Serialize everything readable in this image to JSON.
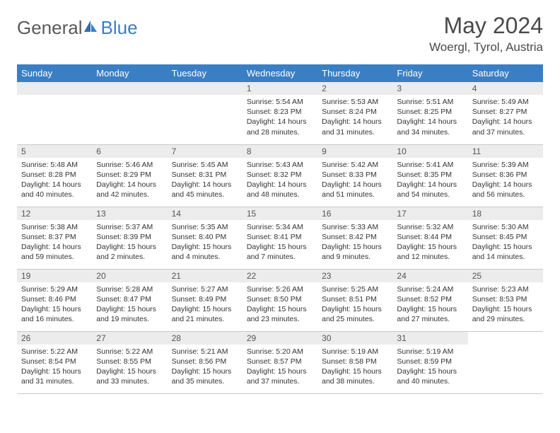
{
  "logo": {
    "text_general": "General",
    "text_blue": "Blue"
  },
  "title": {
    "month_year": "May 2024",
    "location": "Woergl, Tyrol, Austria"
  },
  "colors": {
    "header_bg": "#3a7fc4",
    "header_fg": "#ffffff",
    "daynum_bg": "#ececec",
    "text": "#333333",
    "logo_gray": "#5a5a5a",
    "logo_blue": "#3a7fc4",
    "row_border": "#c8c8c8"
  },
  "day_headers": [
    "Sunday",
    "Monday",
    "Tuesday",
    "Wednesday",
    "Thursday",
    "Friday",
    "Saturday"
  ],
  "weeks": [
    [
      null,
      null,
      null,
      {
        "n": "1",
        "sr": "5:54 AM",
        "ss": "8:23 PM",
        "dl": "14 hours and 28 minutes."
      },
      {
        "n": "2",
        "sr": "5:53 AM",
        "ss": "8:24 PM",
        "dl": "14 hours and 31 minutes."
      },
      {
        "n": "3",
        "sr": "5:51 AM",
        "ss": "8:25 PM",
        "dl": "14 hours and 34 minutes."
      },
      {
        "n": "4",
        "sr": "5:49 AM",
        "ss": "8:27 PM",
        "dl": "14 hours and 37 minutes."
      }
    ],
    [
      {
        "n": "5",
        "sr": "5:48 AM",
        "ss": "8:28 PM",
        "dl": "14 hours and 40 minutes."
      },
      {
        "n": "6",
        "sr": "5:46 AM",
        "ss": "8:29 PM",
        "dl": "14 hours and 42 minutes."
      },
      {
        "n": "7",
        "sr": "5:45 AM",
        "ss": "8:31 PM",
        "dl": "14 hours and 45 minutes."
      },
      {
        "n": "8",
        "sr": "5:43 AM",
        "ss": "8:32 PM",
        "dl": "14 hours and 48 minutes."
      },
      {
        "n": "9",
        "sr": "5:42 AM",
        "ss": "8:33 PM",
        "dl": "14 hours and 51 minutes."
      },
      {
        "n": "10",
        "sr": "5:41 AM",
        "ss": "8:35 PM",
        "dl": "14 hours and 54 minutes."
      },
      {
        "n": "11",
        "sr": "5:39 AM",
        "ss": "8:36 PM",
        "dl": "14 hours and 56 minutes."
      }
    ],
    [
      {
        "n": "12",
        "sr": "5:38 AM",
        "ss": "8:37 PM",
        "dl": "14 hours and 59 minutes."
      },
      {
        "n": "13",
        "sr": "5:37 AM",
        "ss": "8:39 PM",
        "dl": "15 hours and 2 minutes."
      },
      {
        "n": "14",
        "sr": "5:35 AM",
        "ss": "8:40 PM",
        "dl": "15 hours and 4 minutes."
      },
      {
        "n": "15",
        "sr": "5:34 AM",
        "ss": "8:41 PM",
        "dl": "15 hours and 7 minutes."
      },
      {
        "n": "16",
        "sr": "5:33 AM",
        "ss": "8:42 PM",
        "dl": "15 hours and 9 minutes."
      },
      {
        "n": "17",
        "sr": "5:32 AM",
        "ss": "8:44 PM",
        "dl": "15 hours and 12 minutes."
      },
      {
        "n": "18",
        "sr": "5:30 AM",
        "ss": "8:45 PM",
        "dl": "15 hours and 14 minutes."
      }
    ],
    [
      {
        "n": "19",
        "sr": "5:29 AM",
        "ss": "8:46 PM",
        "dl": "15 hours and 16 minutes."
      },
      {
        "n": "20",
        "sr": "5:28 AM",
        "ss": "8:47 PM",
        "dl": "15 hours and 19 minutes."
      },
      {
        "n": "21",
        "sr": "5:27 AM",
        "ss": "8:49 PM",
        "dl": "15 hours and 21 minutes."
      },
      {
        "n": "22",
        "sr": "5:26 AM",
        "ss": "8:50 PM",
        "dl": "15 hours and 23 minutes."
      },
      {
        "n": "23",
        "sr": "5:25 AM",
        "ss": "8:51 PM",
        "dl": "15 hours and 25 minutes."
      },
      {
        "n": "24",
        "sr": "5:24 AM",
        "ss": "8:52 PM",
        "dl": "15 hours and 27 minutes."
      },
      {
        "n": "25",
        "sr": "5:23 AM",
        "ss": "8:53 PM",
        "dl": "15 hours and 29 minutes."
      }
    ],
    [
      {
        "n": "26",
        "sr": "5:22 AM",
        "ss": "8:54 PM",
        "dl": "15 hours and 31 minutes."
      },
      {
        "n": "27",
        "sr": "5:22 AM",
        "ss": "8:55 PM",
        "dl": "15 hours and 33 minutes."
      },
      {
        "n": "28",
        "sr": "5:21 AM",
        "ss": "8:56 PM",
        "dl": "15 hours and 35 minutes."
      },
      {
        "n": "29",
        "sr": "5:20 AM",
        "ss": "8:57 PM",
        "dl": "15 hours and 37 minutes."
      },
      {
        "n": "30",
        "sr": "5:19 AM",
        "ss": "8:58 PM",
        "dl": "15 hours and 38 minutes."
      },
      {
        "n": "31",
        "sr": "5:19 AM",
        "ss": "8:59 PM",
        "dl": "15 hours and 40 minutes."
      },
      null
    ]
  ],
  "labels": {
    "sunrise": "Sunrise: ",
    "sunset": "Sunset: ",
    "daylight": "Daylight: "
  }
}
